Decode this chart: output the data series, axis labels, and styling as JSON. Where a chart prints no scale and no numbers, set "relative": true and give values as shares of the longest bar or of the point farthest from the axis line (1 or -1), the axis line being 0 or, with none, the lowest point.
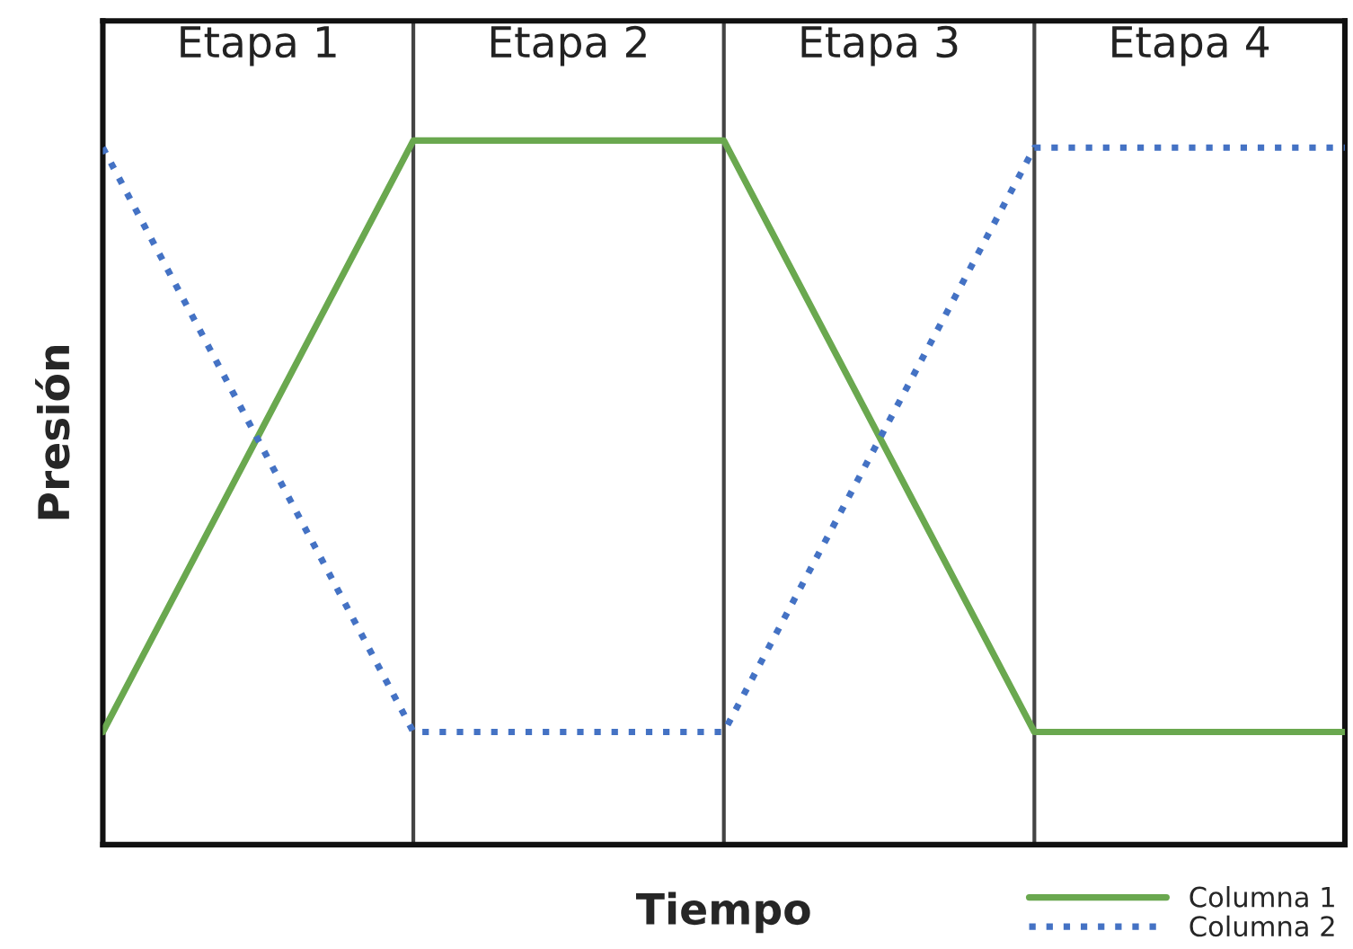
{
  "chart_data": {
    "type": "line",
    "relative": true,
    "xlabel": "Tiempo",
    "ylabel": "Presión",
    "categories": [
      null,
      null,
      null,
      null,
      null
    ],
    "grid": "x",
    "legend": "bottom right",
    "annotations": [
      "Etapa 1",
      "Etapa 2",
      "Etapa 3",
      "Etapa 4"
    ],
    "series": [
      {
        "name": "Columna 1",
        "color": "#6aa84f",
        "line_style": "solid",
        "values": [
          0.16,
          1,
          1,
          0.16,
          0.16
        ]
      },
      {
        "name": "Columna 2",
        "color": "#4472c4",
        "line_style": "dotted",
        "values": [
          0.99,
          0.16,
          0.16,
          0.99,
          0.99
        ]
      }
    ]
  }
}
